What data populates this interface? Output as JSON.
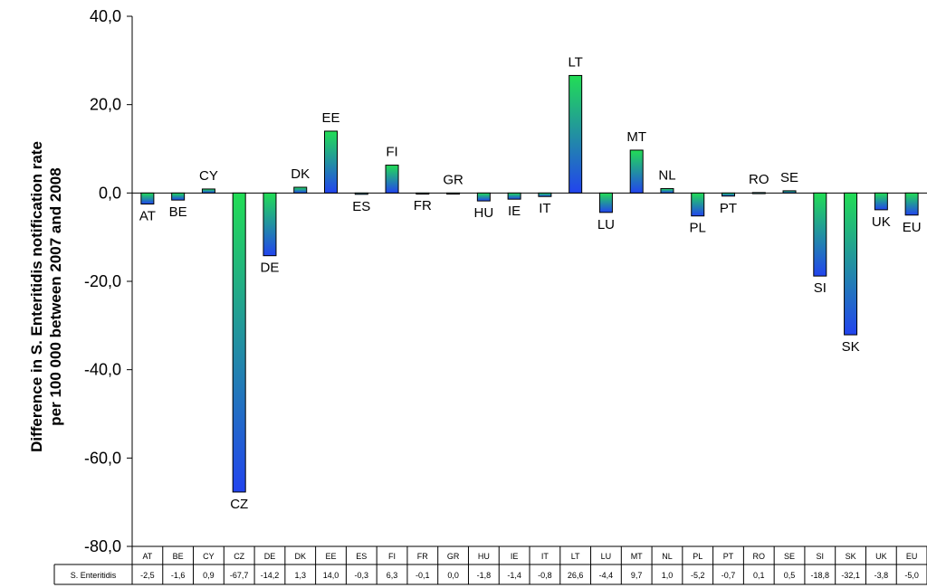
{
  "chart_data": {
    "type": "bar",
    "ylabel_line1": "Difference in S. Enteritidis notification rate",
    "ylabel_line2": "per 100 000 between 2007 and 2008",
    "ylim": [
      -80,
      40
    ],
    "yticks": [
      "40,0",
      "20,0",
      "0,0",
      "-20,0",
      "-40,0",
      "-60,0",
      "-80,0"
    ],
    "ytick_values": [
      40,
      20,
      0,
      -20,
      -40,
      -60,
      -80
    ],
    "categories": [
      "AT",
      "BE",
      "CY",
      "CZ",
      "DE",
      "DK",
      "EE",
      "ES",
      "FI",
      "FR",
      "GR",
      "HU",
      "IE",
      "IT",
      "LT",
      "LU",
      "MT",
      "NL",
      "PL",
      "PT",
      "RO",
      "SE",
      "SI",
      "SK",
      "UK",
      "EU"
    ],
    "series": [
      {
        "name": "S. Enteritidis",
        "values": [
          -2.5,
          -1.6,
          0.9,
          -67.7,
          -14.2,
          1.3,
          14.0,
          -0.3,
          6.3,
          -0.1,
          0.0,
          -1.8,
          -1.4,
          -0.8,
          26.6,
          -4.4,
          9.7,
          1.0,
          -5.2,
          -0.7,
          0.1,
          0.5,
          -18.8,
          -32.1,
          -3.8,
          -5.0
        ],
        "value_labels": [
          "-2,5",
          "-1,6",
          "0,9",
          "-67,7",
          "-14,2",
          "1,3",
          "14,0",
          "-0,3",
          "6,3",
          "-0,1",
          "0,0",
          "-1,8",
          "-1,4",
          "-0,8",
          "26,6",
          "-4,4",
          "9,7",
          "1,0",
          "-5,2",
          "-0,7",
          "0,1",
          "0,5",
          "-18,8",
          "-32,1",
          "-3,8",
          "-5,0"
        ]
      }
    ],
    "colors": {
      "bar_top": "#22dd55",
      "bar_bottom": "#2244ee",
      "bar_stroke": "#000000"
    },
    "grid": false,
    "data_table": true
  }
}
